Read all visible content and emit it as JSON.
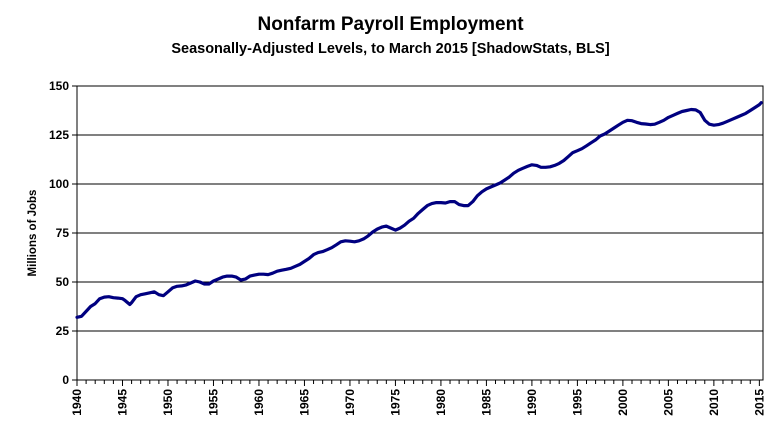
{
  "chart_data": {
    "type": "line",
    "title": "Nonfarm Payroll Employment",
    "subtitle": "Seasonally-Adjusted Levels, to March 2015 [ShadowStats, BLS]",
    "xlabel": "",
    "ylabel": "Millions  of Jobs",
    "xlim": [
      1940,
      2015.4
    ],
    "ylim": [
      0,
      150
    ],
    "y_ticks": [
      0,
      25,
      50,
      75,
      100,
      125,
      150
    ],
    "x_ticks": [
      1940,
      1945,
      1950,
      1955,
      1960,
      1965,
      1970,
      1975,
      1980,
      1985,
      1990,
      1995,
      2000,
      2005,
      2010,
      2015
    ],
    "grid": "horizontal",
    "line_color": "#000080",
    "series": [
      {
        "x": [
          1940,
          1940.5,
          1941,
          1941.5,
          1942,
          1942.5,
          1943,
          1943.5,
          1944,
          1944.5,
          1945,
          1945.3,
          1945.8,
          1946,
          1946.5,
          1947,
          1947.5,
          1948,
          1948.5,
          1949,
          1949.5,
          1950,
          1950.5,
          1951,
          1951.5,
          1952,
          1952.5,
          1953,
          1953.5,
          1954,
          1954.5,
          1955,
          1955.5,
          1956,
          1956.5,
          1957,
          1957.5,
          1958,
          1958.5,
          1959,
          1959.5,
          1960,
          1960.5,
          1961,
          1961.5,
          1962,
          1962.5,
          1963,
          1963.5,
          1964,
          1964.5,
          1965,
          1965.5,
          1966,
          1966.5,
          1967,
          1967.5,
          1968,
          1968.5,
          1969,
          1969.5,
          1970,
          1970.5,
          1971,
          1971.5,
          1972,
          1972.5,
          1973,
          1973.5,
          1974,
          1974.5,
          1975,
          1975.5,
          1976,
          1976.5,
          1977,
          1977.5,
          1978,
          1978.5,
          1979,
          1979.5,
          1980,
          1980.5,
          1981,
          1981.5,
          1982,
          1982.5,
          1983,
          1983.5,
          1984,
          1984.5,
          1985,
          1985.5,
          1986,
          1986.5,
          1987,
          1987.5,
          1988,
          1988.5,
          1989,
          1989.5,
          1990,
          1990.5,
          1991,
          1991.5,
          1992,
          1992.5,
          1993,
          1993.5,
          1994,
          1994.5,
          1995,
          1995.5,
          1996,
          1996.5,
          1997,
          1997.5,
          1998,
          1998.5,
          1999,
          1999.5,
          2000,
          2000.5,
          2001,
          2001.5,
          2002,
          2002.5,
          2003,
          2003.5,
          2004,
          2004.5,
          2005,
          2005.5,
          2006,
          2006.5,
          2007,
          2007.5,
          2008,
          2008.5,
          2009,
          2009.5,
          2010,
          2010.5,
          2011,
          2011.5,
          2012,
          2012.5,
          2013,
          2013.5,
          2014,
          2014.5,
          2015,
          2015.2
        ],
        "values": [
          32,
          32.5,
          35,
          37.5,
          39,
          41.5,
          42.3,
          42.5,
          42,
          41.8,
          41.5,
          40.5,
          38.5,
          39.5,
          42.5,
          43.5,
          44,
          44.5,
          45,
          43.5,
          43,
          45,
          47,
          47.8,
          48,
          48.5,
          49.5,
          50.5,
          50,
          49,
          49,
          50.5,
          51.5,
          52.5,
          53,
          53,
          52.5,
          51,
          51.5,
          53,
          53.5,
          54,
          54,
          53.8,
          54.5,
          55.5,
          56,
          56.5,
          57,
          58,
          59,
          60.5,
          62,
          64,
          65,
          65.5,
          66.5,
          67.5,
          69,
          70.5,
          71,
          70.8,
          70.5,
          71,
          72,
          73.5,
          75.5,
          77,
          78,
          78.5,
          77.5,
          76.5,
          77.5,
          79,
          81,
          82.5,
          85,
          87,
          89,
          90,
          90.5,
          90.5,
          90.3,
          91,
          91,
          89.5,
          89,
          89,
          91,
          94,
          96,
          97.5,
          98.5,
          99.5,
          100.5,
          102,
          103.5,
          105.5,
          107,
          108,
          109,
          109.8,
          109.5,
          108.5,
          108.5,
          108.8,
          109.5,
          110.5,
          112,
          114,
          116,
          117,
          118,
          119.5,
          121,
          122.5,
          124.5,
          125.5,
          127,
          128.5,
          130,
          131.5,
          132.5,
          132.3,
          131.5,
          130.8,
          130.6,
          130.3,
          130.5,
          131.5,
          132.5,
          134,
          135,
          136,
          137,
          137.5,
          138,
          137.8,
          136.5,
          132.5,
          130.5,
          130,
          130.3,
          131,
          132,
          133,
          134,
          135,
          136,
          137.5,
          139,
          140.5,
          141.5
        ]
      }
    ]
  }
}
